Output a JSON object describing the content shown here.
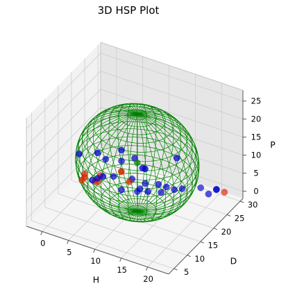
{
  "chart_data": {
    "type": "scatter",
    "projection": "3d",
    "title": "3D HSP Plot",
    "xlabel": "H",
    "ylabel": "D",
    "zlabel": "P",
    "xlim": [
      -3,
      24
    ],
    "ylim": [
      3,
      31
    ],
    "zlim": [
      -2,
      28
    ],
    "xticks": [
      0,
      5,
      10,
      15,
      20
    ],
    "yticks": [
      5,
      10,
      15,
      20,
      25,
      30
    ],
    "zticks": [
      0,
      5,
      10,
      15,
      20,
      25
    ],
    "grid": true,
    "colors": {
      "wireframe": "#008000",
      "inside": "#0000cc",
      "outside": "#dd2200",
      "center": "#008000",
      "pane_left": "#f2f2f2",
      "pane_right": "#e6e6e6",
      "pane_floor": "#f5f5f5",
      "grid": "#cccccc"
    },
    "sphere": {
      "center": [
        10.5,
        18,
        11
      ],
      "radii": [
        10.5,
        10.5,
        13.5
      ]
    },
    "series": [
      {
        "role": "inside",
        "points": [
          [
            3,
            11,
            15
          ],
          [
            6,
            12,
            16
          ],
          [
            9,
            15,
            16
          ],
          [
            5,
            17,
            10
          ],
          [
            7,
            19,
            9
          ],
          [
            4,
            16,
            5
          ],
          [
            6,
            18,
            5
          ],
          [
            9,
            19,
            5
          ],
          [
            11,
            20,
            4
          ],
          [
            13,
            21,
            4
          ],
          [
            14,
            22,
            3
          ],
          [
            16,
            24,
            2
          ],
          [
            15,
            23,
            2
          ],
          [
            12,
            19,
            3
          ],
          [
            8,
            17,
            3
          ],
          [
            10,
            20,
            2
          ],
          [
            13,
            22,
            1
          ],
          [
            18,
            27,
            1
          ],
          [
            21,
            27,
            2
          ],
          [
            22,
            25,
            4
          ],
          [
            20,
            26,
            1
          ],
          [
            14,
            14,
            14
          ],
          [
            17,
            20,
            14
          ],
          [
            10,
            18,
            12
          ],
          [
            12,
            17,
            11
          ],
          [
            6,
            14,
            8
          ],
          [
            3,
            16,
            4
          ],
          [
            9,
            21,
            0
          ]
        ]
      },
      {
        "role": "outside",
        "points": [
          [
            13,
            7,
            18
          ],
          [
            2,
            15,
            5
          ],
          [
            1,
            17,
            4
          ],
          [
            3,
            18,
            2
          ],
          [
            2,
            19,
            1
          ],
          [
            1,
            16,
            3
          ],
          [
            4,
            17,
            5
          ],
          [
            22,
            28,
            1
          ],
          [
            9,
            18,
            5
          ]
        ]
      },
      {
        "role": "center",
        "points": [
          [
            10.5,
            18,
            11
          ]
        ]
      }
    ]
  }
}
